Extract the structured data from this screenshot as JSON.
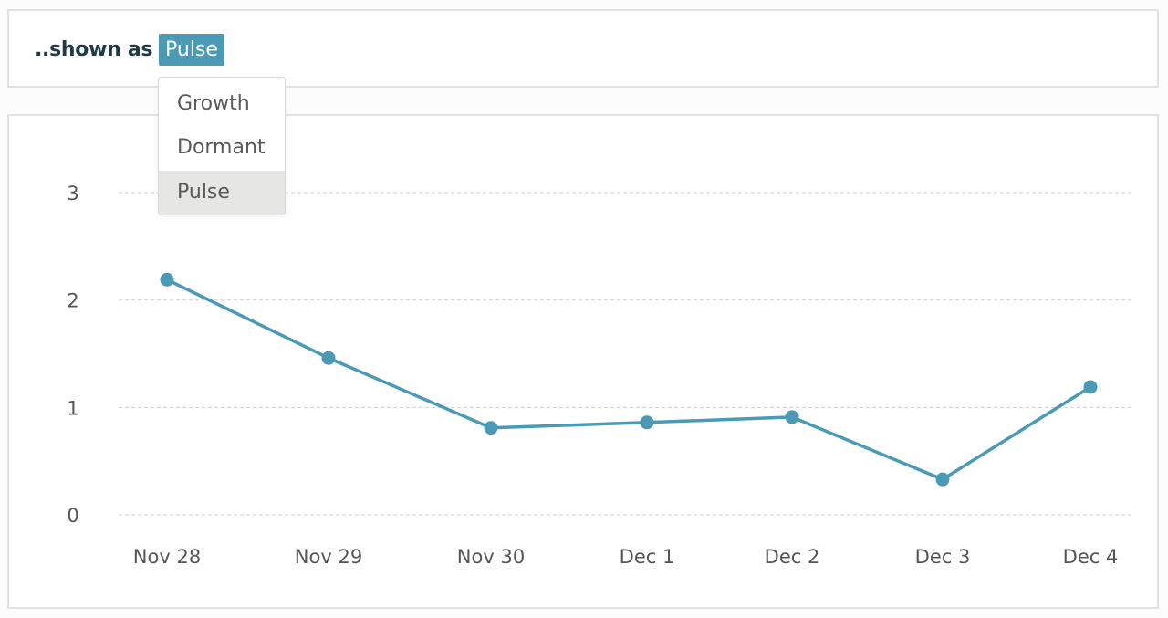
{
  "header": {
    "shown_as_label": "..shown as",
    "selected_view": "Pulse"
  },
  "dropdown": {
    "options": [
      "Growth",
      "Dormant",
      "Pulse"
    ],
    "selected_index": 2
  },
  "colors": {
    "accent": "#4a9ab6",
    "line": "#4a9ab6",
    "grid": "#cfcfcf",
    "axis_text": "#555555",
    "selected_bg": "#e6e6e4"
  },
  "chart_data": {
    "type": "line",
    "categories": [
      "Nov 28",
      "Nov 29",
      "Nov 30",
      "Dec 1",
      "Dec 2",
      "Dec 3",
      "Dec 4"
    ],
    "series": [
      {
        "values": [
          2.19,
          1.46,
          0.81,
          0.86,
          0.91,
          0.33,
          1.19
        ]
      }
    ],
    "yticks": [
      0,
      1,
      2,
      3
    ],
    "ylim": [
      0,
      3
    ],
    "grid": true,
    "grid_style": "dashed",
    "legend": "none"
  }
}
